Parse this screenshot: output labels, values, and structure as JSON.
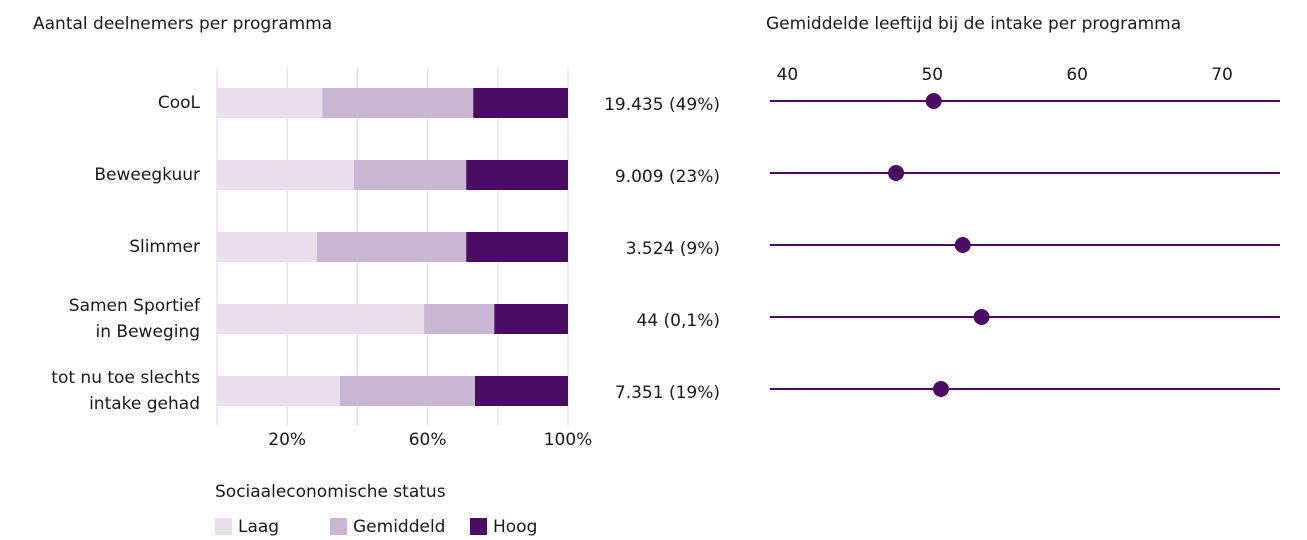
{
  "chart_data": [
    {
      "type": "stacked-bar-horizontal",
      "title": "Aantal deelnemers per programma",
      "categories": [
        "CooL",
        "Beweegkuur",
        "Slimmer",
        "Samen Sportief\nin Beweging",
        "tot nu toe slechts\nintake gehad"
      ],
      "series": [
        {
          "name": "Laag",
          "color": "#e9dfec",
          "values": [
            30,
            39,
            28.5,
            59,
            35
          ]
        },
        {
          "name": "Gemiddeld",
          "color": "#c9b6d2",
          "values": [
            43,
            32,
            42.5,
            20,
            38.5
          ]
        },
        {
          "name": "Hoog",
          "color": "#4a0d63",
          "values": [
            27,
            29,
            29,
            21,
            26.5
          ]
        }
      ],
      "bar_labels": [
        "19.435 (49%)",
        "9.009 (23%)",
        "3.524 (9%)",
        "44 (0,1%)",
        "7.351 (19%)"
      ],
      "xlim": [
        0,
        100
      ],
      "xticks": [
        {
          "value": 20,
          "label": "20%"
        },
        {
          "value": 60,
          "label": "60%"
        },
        {
          "value": 100,
          "label": "100%"
        }
      ],
      "xgrid": [
        0,
        20,
        40,
        60,
        80,
        100
      ],
      "legend_title": "Sociaaleconomische status"
    },
    {
      "type": "dot",
      "title": "Gemiddelde leeftijd bij de intake per programma",
      "values": [
        50.1,
        47.5,
        52.1,
        53.4,
        50.6
      ],
      "color": "#4a0d63",
      "xlim": [
        38.8,
        74
      ],
      "xticks": [
        40,
        50,
        60,
        70
      ]
    }
  ]
}
